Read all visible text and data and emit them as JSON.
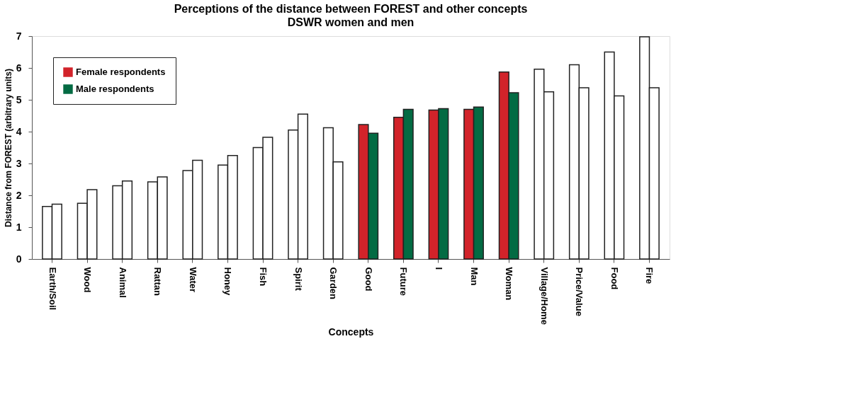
{
  "chart_data": {
    "type": "bar",
    "title": "Perceptions of the distance between FOREST and other concepts",
    "subtitle": "DSWR women and men",
    "xlabel": "Concepts",
    "ylabel": "Distance from FOREST (arbitrary units)",
    "categories": [
      "Earth/Soil",
      "Wood",
      "Animal",
      "Rattan",
      "Water",
      "Honey",
      "Fish",
      "Spirit",
      "Garden",
      "Good",
      "Future",
      "I",
      "Man",
      "Woman",
      "Village/Home",
      "Price/Value",
      "Food",
      "Fire"
    ],
    "series": [
      {
        "name": "Female respondents",
        "color": "#d2232a",
        "values": [
          1.65,
          1.75,
          2.3,
          2.42,
          2.78,
          2.95,
          3.5,
          4.05,
          4.12,
          4.22,
          4.45,
          4.68,
          4.7,
          5.87,
          5.96,
          6.1,
          6.5,
          6.98
        ],
        "colors": [
          "#ffffff",
          "#ffffff",
          "#ffffff",
          "#ffffff",
          "#ffffff",
          "#ffffff",
          "#ffffff",
          "#ffffff",
          "#ffffff",
          "#d2232a",
          "#d2232a",
          "#d2232a",
          "#d2232a",
          "#d2232a",
          "#ffffff",
          "#ffffff",
          "#ffffff",
          "#ffffff"
        ]
      },
      {
        "name": "Male respondents",
        "color": "#036b43",
        "values": [
          1.72,
          2.18,
          2.45,
          2.58,
          3.1,
          3.25,
          3.82,
          4.55,
          3.05,
          3.95,
          4.7,
          4.72,
          4.77,
          5.22,
          5.25,
          5.38,
          5.12,
          5.38
        ],
        "colors": [
          "#ffffff",
          "#ffffff",
          "#ffffff",
          "#ffffff",
          "#ffffff",
          "#ffffff",
          "#ffffff",
          "#ffffff",
          "#ffffff",
          "#036b43",
          "#036b43",
          "#036b43",
          "#036b43",
          "#036b43",
          "#ffffff",
          "#ffffff",
          "#ffffff",
          "#ffffff"
        ]
      }
    ],
    "ylim": [
      0,
      7
    ],
    "yticks": [
      0,
      1,
      2,
      3,
      4,
      5,
      6,
      7
    ],
    "grid": false,
    "legend": "top left"
  }
}
